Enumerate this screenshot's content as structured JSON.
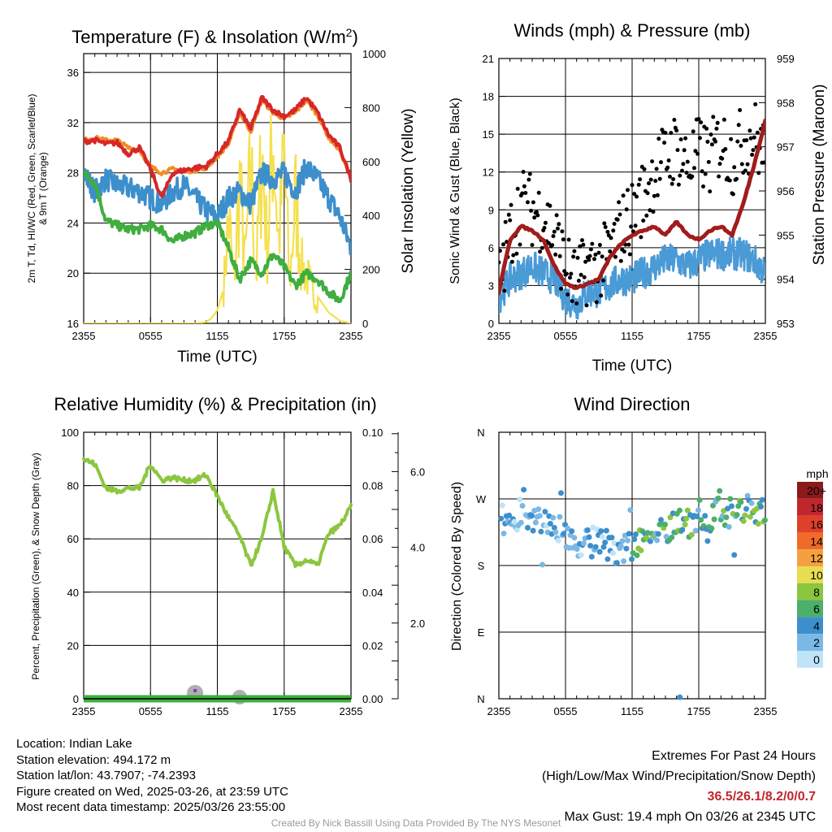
{
  "colors": {
    "temp_red": "#d62728",
    "temp_orange": "#f28c28",
    "dewpoint_green": "#3fae3f",
    "windchill_blue": "#3d8fcc",
    "insolation_yellow": "#f5e050",
    "wind_blue": "#4a9ad6",
    "gust_black": "#000000",
    "pressure_maroon": "#a11c1c",
    "rh_green": "#8cc63f",
    "precip_green": "#3fae3f",
    "snow_gray": "#b0b0b0"
  },
  "x_ticks": [
    "2355",
    "0555",
    "1155",
    "1755",
    "2355"
  ],
  "panels": {
    "temperature": {
      "title": "Temperature (F) & Insolation (W/m²)",
      "xlabel": "Time (UTC)",
      "ylabel_left": [
        "2m T, Td, HI/WC (Red, Green, Scarlet/Blue)",
        "& 9m T (Orange)"
      ],
      "ylabel_right": "Solar Insolation (Yellow)"
    },
    "winds": {
      "title": "Winds (mph) & Pressure (mb)",
      "xlabel": "Time (UTC)",
      "ylabel_left": "Sonic Wind & Gust (Blue, Black)",
      "ylabel_right": "Station Pressure (Maroon)"
    },
    "humidity": {
      "title": "Relative Humidity (%) & Precipitation (in)",
      "ylabel_left": "Percent, Precipitation (Green), & Snow Depth (Gray)"
    },
    "direction": {
      "title": "Wind Direction",
      "ylabel_left": "Direction (Colored By Speed)",
      "legend_title": "mph",
      "legend": [
        {
          "label": "20+",
          "color": "#8b1a1a"
        },
        {
          "label": "18",
          "color": "#c0272d"
        },
        {
          "label": "16",
          "color": "#e0402a"
        },
        {
          "label": "14",
          "color": "#f06a2a"
        },
        {
          "label": "12",
          "color": "#f5a040"
        },
        {
          "label": "10",
          "color": "#e8dc50"
        },
        {
          "label": "8",
          "color": "#8cc63f"
        },
        {
          "label": "6",
          "color": "#4caf6a"
        },
        {
          "label": "4",
          "color": "#3d8fcc"
        },
        {
          "label": "2",
          "color": "#7ab8e6"
        },
        {
          "label": "0",
          "color": "#bfe3f7"
        }
      ]
    }
  },
  "chart_data": [
    {
      "type": "line",
      "title": "Temperature (F) & Insolation (W/m²)",
      "xlabel": "Time (UTC)",
      "x_tick_labels": [
        "2355",
        "0555",
        "1155",
        "1755",
        "2355"
      ],
      "x_range_hours": [
        0,
        24
      ],
      "ylim": [
        16,
        37.5
      ],
      "yticks": [
        16,
        20,
        24,
        28,
        32,
        36
      ],
      "y2lim": [
        0,
        1000
      ],
      "y2ticks": [
        0,
        200,
        400,
        600,
        800,
        1000
      ],
      "series": [
        {
          "axis": "left",
          "color": "#d62728",
          "x": [
            0,
            1,
            2,
            3,
            4,
            5,
            6,
            7,
            8,
            9,
            10,
            11,
            12,
            13,
            14,
            15,
            16,
            17,
            18,
            19,
            20,
            21,
            22,
            23,
            24
          ],
          "values": [
            30.5,
            30.6,
            30.3,
            30.4,
            29.5,
            30.0,
            28.3,
            26.0,
            28.0,
            28.2,
            28.4,
            28.5,
            29.5,
            30.5,
            33.0,
            31.5,
            34.0,
            33.0,
            32.5,
            33.0,
            34.0,
            32.8,
            31.0,
            30.0,
            27.5
          ]
        },
        {
          "axis": "left",
          "color": "#f28c28",
          "x": [
            0,
            1,
            2,
            3,
            4,
            5,
            6,
            7,
            8,
            9,
            10,
            11,
            12,
            13,
            14,
            15,
            16,
            17,
            18,
            19,
            20,
            21,
            22,
            23,
            24
          ],
          "values": [
            30.6,
            30.8,
            30.6,
            30.6,
            30.0,
            29.8,
            28.5,
            28.0,
            28.3,
            28.1,
            28.2,
            28.4,
            29.3,
            30.3,
            32.8,
            31.3,
            33.8,
            32.8,
            32.3,
            32.8,
            33.8,
            32.6,
            30.8,
            29.8,
            27.6
          ]
        },
        {
          "axis": "left",
          "color": "#3d8fcc",
          "x": [
            0,
            1,
            2,
            3,
            4,
            5,
            6,
            7,
            8,
            9,
            10,
            11,
            12,
            13,
            14,
            15,
            16,
            17,
            18,
            19,
            20,
            21,
            22,
            23,
            24
          ],
          "values": [
            28.0,
            26.5,
            27.5,
            27.0,
            26.8,
            26.5,
            26.0,
            25.5,
            26.5,
            27.0,
            26.0,
            25.0,
            24.5,
            26.0,
            26.5,
            25.5,
            28.0,
            27.5,
            28.0,
            26.5,
            28.5,
            27.5,
            26.0,
            24.5,
            22.0
          ]
        },
        {
          "axis": "left",
          "color": "#3fae3f",
          "x": [
            0,
            1,
            2,
            3,
            4,
            5,
            6,
            7,
            8,
            9,
            10,
            11,
            12,
            13,
            14,
            15,
            16,
            17,
            18,
            19,
            20,
            21,
            22,
            23,
            24
          ],
          "values": [
            28.0,
            27.2,
            24.2,
            23.8,
            23.5,
            23.5,
            23.8,
            23.5,
            22.5,
            23.0,
            23.2,
            23.8,
            24.0,
            22.0,
            19.5,
            21.0,
            20.0,
            21.5,
            20.5,
            19.0,
            20.0,
            19.5,
            18.5,
            17.8,
            20.0
          ]
        },
        {
          "axis": "right",
          "color": "#f5e050",
          "x": [
            0,
            2,
            4,
            6,
            8,
            10,
            11,
            11.5,
            12,
            12.5,
            13,
            13.5,
            14,
            14.5,
            15,
            15.5,
            16,
            16.5,
            17,
            17.5,
            18,
            18.5,
            19,
            19.5,
            20,
            21,
            22,
            23,
            24
          ],
          "values": [
            0,
            0,
            0,
            0,
            0,
            0,
            5,
            20,
            50,
            120,
            550,
            200,
            700,
            300,
            800,
            250,
            900,
            350,
            1000,
            400,
            850,
            200,
            650,
            300,
            250,
            100,
            40,
            10,
            0
          ]
        }
      ]
    },
    {
      "type": "line",
      "title": "Winds (mph) & Pressure (mb)",
      "xlabel": "Time (UTC)",
      "ylabel": "Sonic Wind & Gust (Blue, Black)",
      "x_tick_labels": [
        "2355",
        "0555",
        "1155",
        "1755",
        "2355"
      ],
      "x_range_hours": [
        0,
        24
      ],
      "ylim": [
        0,
        21
      ],
      "yticks": [
        0,
        3,
        6,
        9,
        12,
        15,
        18,
        21
      ],
      "y2lim": [
        953,
        959
      ],
      "y2ticks": [
        953,
        954,
        955,
        956,
        957,
        958,
        959
      ],
      "series": [
        {
          "name": "Sonic Wind",
          "axis": "left",
          "color": "#4a9ad6",
          "x": [
            0,
            1,
            2,
            3,
            4,
            5,
            6,
            7,
            8,
            9,
            10,
            11,
            12,
            13,
            14,
            15,
            16,
            17,
            18,
            19,
            20,
            21,
            22,
            23,
            24
          ],
          "values": [
            2.0,
            3.5,
            4.0,
            4.5,
            4.0,
            3.5,
            2.0,
            1.5,
            2.5,
            2.5,
            3.0,
            3.5,
            3.5,
            4.0,
            4.5,
            5.0,
            5.0,
            4.5,
            5.0,
            5.5,
            5.5,
            5.5,
            5.5,
            5.0,
            4.0
          ]
        },
        {
          "name": "Gust",
          "axis": "left",
          "color": "#000000",
          "x": [
            0,
            1,
            2,
            3,
            4,
            5,
            6,
            7,
            8,
            9,
            10,
            11,
            12,
            13,
            14,
            15,
            16,
            17,
            18,
            19,
            20,
            21,
            22,
            23,
            24
          ],
          "values": [
            3.0,
            7.0,
            9.5,
            9.0,
            8.5,
            7.0,
            4.5,
            3.0,
            4.5,
            4.5,
            5.5,
            7.5,
            8.5,
            10.0,
            12.0,
            13.0,
            14.0,
            12.5,
            13.5,
            13.0,
            14.5,
            13.0,
            14.5,
            15.0,
            13.0
          ]
        },
        {
          "name": "Pressure",
          "axis": "right",
          "color": "#a11c1c",
          "x": [
            0,
            1,
            2,
            3,
            4,
            5,
            6,
            7,
            8,
            9,
            10,
            11,
            12,
            13,
            14,
            15,
            16,
            17,
            18,
            19,
            20,
            21,
            22,
            23,
            24
          ],
          "values": [
            953.7,
            954.9,
            955.2,
            955.1,
            954.9,
            954.3,
            953.9,
            953.8,
            953.9,
            954.0,
            954.5,
            954.8,
            955.0,
            955.1,
            955.2,
            955.0,
            955.3,
            955.0,
            954.9,
            955.1,
            955.2,
            955.0,
            955.7,
            956.6,
            957.6
          ]
        }
      ]
    },
    {
      "type": "line",
      "title": "Relative Humidity (%) & Precipitation (in)",
      "ylabel": "Percent, Precipitation (Green), & Snow Depth (Gray)",
      "x_tick_labels": [
        "2355",
        "0555",
        "1155",
        "1755",
        "2355"
      ],
      "x_range_hours": [
        0,
        24
      ],
      "ylim": [
        0,
        100
      ],
      "yticks": [
        0,
        20,
        40,
        60,
        80,
        100
      ],
      "y2lim": [
        0,
        0.1
      ],
      "y2ticks": [
        0.0,
        0.02,
        0.04,
        0.06,
        0.08,
        0.1
      ],
      "y2tick_labels": [
        "0.00",
        "0.02",
        "0.04",
        "0.06",
        "0.08",
        "0.10"
      ],
      "y3ticks": [
        2.0,
        4.0,
        6.0
      ],
      "y3tick_labels": [
        "2.0",
        "4.0",
        "6.0"
      ],
      "series": [
        {
          "axis": "left",
          "color": "#8cc63f",
          "x": [
            0,
            1,
            2,
            3,
            4,
            5,
            6,
            7,
            8,
            9,
            10,
            11,
            12,
            13,
            14,
            15,
            16,
            17,
            18,
            19,
            20,
            21,
            22,
            23,
            24
          ],
          "values": [
            90,
            88,
            79,
            78,
            79,
            79,
            88,
            82,
            83,
            82,
            82,
            84,
            76,
            68,
            61,
            50,
            60,
            78,
            57,
            50,
            52,
            50,
            62,
            65,
            72
          ]
        },
        {
          "axis": "left",
          "color": "#3fae3f",
          "x": [
            0,
            24
          ],
          "values": [
            0,
            0
          ]
        },
        {
          "axis": "left",
          "color": "#b0b0b0",
          "x": [
            10,
            14
          ],
          "values": [
            0.3,
            0.2
          ]
        }
      ]
    },
    {
      "type": "scatter",
      "title": "Wind Direction",
      "ylabel": "Direction (Colored By Speed)",
      "x_tick_labels": [
        "2355",
        "0555",
        "1155",
        "1755",
        "2355"
      ],
      "x_range_hours": [
        0,
        24
      ],
      "ylim": [
        0,
        360
      ],
      "ytick_labels": [
        "N",
        "E",
        "S",
        "W",
        "N"
      ],
      "series": [
        {
          "name": "direction",
          "x": [
            0,
            1,
            2,
            3,
            4,
            5,
            6,
            7,
            8,
            9,
            10,
            11,
            12,
            13,
            14,
            15,
            16,
            17,
            18,
            19,
            20,
            21,
            22,
            23,
            24
          ],
          "values": [
            240,
            245,
            250,
            245,
            240,
            235,
            225,
            205,
            210,
            215,
            205,
            200,
            205,
            215,
            220,
            230,
            240,
            235,
            250,
            245,
            255,
            250,
            260,
            255,
            250
          ]
        }
      ]
    }
  ],
  "info_left": [
    "Location: Indian Lake",
    "Station elevation: 494.172 m",
    "Station lat/lon: 43.7907; -74.2393",
    "Figure created on Wed, 2025-03-26, at 23:59 UTC",
    "Most recent data timestamp: 2025/03/26 23:55:00"
  ],
  "info_right": {
    "line1": "Extremes For Past 24 Hours",
    "line2": "(High/Low/Max Wind/Precipitation/Snow Depth)",
    "values": "36.5/26.1/8.2/0/0.7",
    "gust": "Max Gust: 19.4 mph On 03/26 at 2345 UTC"
  },
  "credit": "Created By Nick Bassill Using Data Provided By The NYS Mesonet"
}
